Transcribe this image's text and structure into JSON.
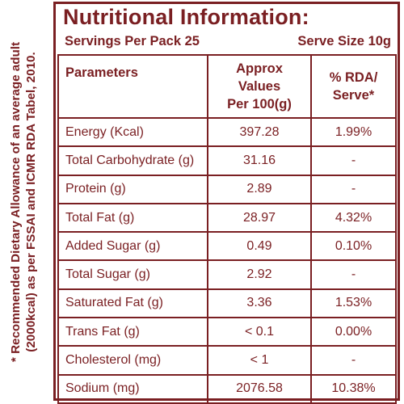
{
  "side_note": {
    "line1": "* Recommended Dietary Allowance of an average adult",
    "line2": "(2000kcal) as per FSSAI and ICMR RDA Tabel, 2010."
  },
  "header": {
    "title": "Nutritional Information:",
    "servings": "Servings Per Pack 25",
    "serve_size": "Serve Size 10g"
  },
  "table": {
    "col1": "Parameters",
    "col2_line1": "Approx Values",
    "col2_line2": "Per 100(g)",
    "col3_line1": "% RDA/",
    "col3_line2": "Serve*",
    "rows": [
      {
        "name": "Energy (Kcal)",
        "value": "397.28",
        "rda": "1.99%"
      },
      {
        "name": "Total Carbohydrate (g)",
        "value": "31.16",
        "rda": "-"
      },
      {
        "name": "Protein (g)",
        "value": "2.89",
        "rda": "-"
      },
      {
        "name": "Total Fat (g)",
        "value": "28.97",
        "rda": "4.32%"
      },
      {
        "name": "Added Sugar (g)",
        "value": "0.49",
        "rda": "0.10%"
      },
      {
        "name": "Total Sugar (g)",
        "value": "2.92",
        "rda": "-"
      },
      {
        "name": "Saturated Fat (g)",
        "value": "3.36",
        "rda": "1.53%"
      },
      {
        "name": "Trans Fat (g)",
        "value": "< 0.1",
        "rda": "0.00%"
      },
      {
        "name": "Cholesterol (mg)",
        "value": "< 1",
        "rda": "-"
      },
      {
        "name": "Sodium (mg)",
        "value": "2076.58",
        "rda": "10.38%"
      }
    ]
  }
}
